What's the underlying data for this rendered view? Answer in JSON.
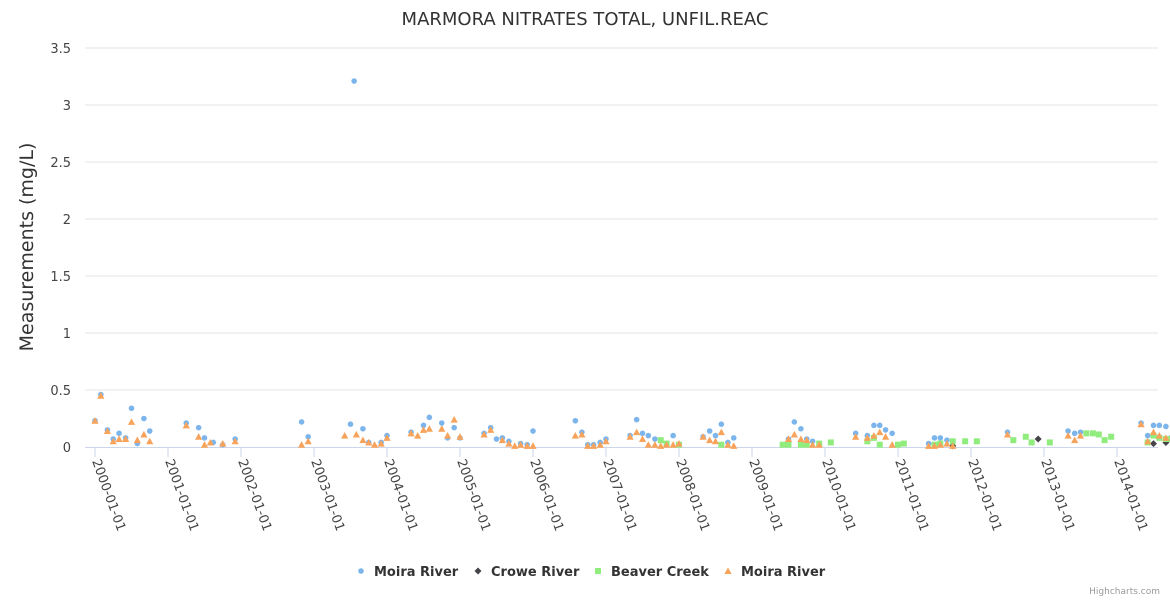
{
  "chart_data": {
    "type": "scatter",
    "title": "MARMORA NITRATES TOTAL, UNFIL.REAC",
    "ylabel": "Measurements (mg/L)",
    "xlabel": "",
    "ylim": [
      0,
      3.5
    ],
    "yticks": [
      0,
      0.5,
      1,
      1.5,
      2,
      2.5,
      3,
      3.5
    ],
    "ytick_labels": [
      "0",
      "0.5",
      "1",
      "1.5",
      "2",
      "2.5",
      "3",
      "3.5"
    ],
    "xlim": [
      1999.95,
      2014.6
    ],
    "xticks": [
      2000,
      2001,
      2002,
      2003,
      2004,
      2005,
      2006,
      2007,
      2008,
      2009,
      2010,
      2011,
      2012,
      2013,
      2014
    ],
    "xtick_labels": [
      "2000-01-01",
      "2001-01-01",
      "2002-01-01",
      "2003-01-01",
      "2004-01-01",
      "2005-01-01",
      "2006-01-01",
      "2007-01-01",
      "2008-01-01",
      "2009-01-01",
      "2010-01-01",
      "2011-01-01",
      "2012-01-01",
      "2013-01-01",
      "2014-01-01"
    ],
    "grid": true,
    "legend_position": "bottom-center",
    "series": [
      {
        "name": "Moira River",
        "marker": "circle",
        "color": "#7cb5ec",
        "points": [
          [
            2000.0,
            0.23
          ],
          [
            2000.08,
            0.46
          ],
          [
            2000.17,
            0.15
          ],
          [
            2000.25,
            0.07
          ],
          [
            2000.33,
            0.12
          ],
          [
            2000.42,
            0.08
          ],
          [
            2000.5,
            0.34
          ],
          [
            2000.58,
            0.03
          ],
          [
            2000.67,
            0.25
          ],
          [
            2000.75,
            0.14
          ],
          [
            2001.25,
            0.21
          ],
          [
            2001.42,
            0.17
          ],
          [
            2001.5,
            0.08
          ],
          [
            2001.62,
            0.04
          ],
          [
            2001.75,
            0.02
          ],
          [
            2001.92,
            0.07
          ],
          [
            2002.83,
            0.22
          ],
          [
            2002.92,
            0.09
          ],
          [
            2003.5,
            0.2
          ],
          [
            2003.55,
            3.21
          ],
          [
            2003.67,
            0.16
          ],
          [
            2003.75,
            0.04
          ],
          [
            2003.92,
            0.04
          ],
          [
            2004.0,
            0.1
          ],
          [
            2004.33,
            0.13
          ],
          [
            2004.5,
            0.19
          ],
          [
            2004.58,
            0.26
          ],
          [
            2004.75,
            0.21
          ],
          [
            2004.83,
            0.08
          ],
          [
            2004.92,
            0.17
          ],
          [
            2005.0,
            0.08
          ],
          [
            2005.33,
            0.12
          ],
          [
            2005.42,
            0.17
          ],
          [
            2005.5,
            0.07
          ],
          [
            2005.58,
            0.08
          ],
          [
            2005.67,
            0.05
          ],
          [
            2005.83,
            0.03
          ],
          [
            2005.92,
            0.02
          ],
          [
            2006.0,
            0.14
          ],
          [
            2006.58,
            0.23
          ],
          [
            2006.67,
            0.13
          ],
          [
            2006.75,
            0.02
          ],
          [
            2006.83,
            0.02
          ],
          [
            2006.92,
            0.04
          ],
          [
            2007.0,
            0.07
          ],
          [
            2007.33,
            0.1
          ],
          [
            2007.42,
            0.24
          ],
          [
            2007.5,
            0.12
          ],
          [
            2007.58,
            0.1
          ],
          [
            2007.67,
            0.07
          ],
          [
            2007.83,
            0.03
          ],
          [
            2007.92,
            0.1
          ],
          [
            2008.33,
            0.09
          ],
          [
            2008.42,
            0.14
          ],
          [
            2008.5,
            0.1
          ],
          [
            2008.58,
            0.2
          ],
          [
            2008.67,
            0.04
          ],
          [
            2008.75,
            0.08
          ],
          [
            2009.5,
            0.07
          ],
          [
            2009.58,
            0.22
          ],
          [
            2009.67,
            0.16
          ],
          [
            2009.75,
            0.07
          ],
          [
            2009.83,
            0.05
          ],
          [
            2010.42,
            0.12
          ],
          [
            2010.58,
            0.1
          ],
          [
            2010.67,
            0.19
          ],
          [
            2010.75,
            0.19
          ],
          [
            2010.83,
            0.15
          ],
          [
            2010.92,
            0.12
          ],
          [
            2011.42,
            0.03
          ],
          [
            2011.5,
            0.08
          ],
          [
            2011.58,
            0.08
          ],
          [
            2011.67,
            0.06
          ],
          [
            2012.5,
            0.13
          ],
          [
            2013.33,
            0.14
          ],
          [
            2013.42,
            0.12
          ],
          [
            2013.5,
            0.13
          ],
          [
            2014.33,
            0.21
          ],
          [
            2014.42,
            0.1
          ],
          [
            2014.5,
            0.19
          ],
          [
            2014.58,
            0.19
          ],
          [
            2014.67,
            0.18
          ],
          [
            2014.75,
            0.09
          ]
        ]
      },
      {
        "name": "Crowe River",
        "marker": "diamond",
        "color": "#434348",
        "points": [
          [
            2011.75,
            0.01
          ],
          [
            2012.92,
            0.07
          ],
          [
            2014.5,
            0.03
          ],
          [
            2014.67,
            0.04
          ]
        ]
      },
      {
        "name": "Beaver Creek",
        "marker": "square",
        "color": "#90ed7d",
        "points": [
          [
            2007.75,
            0.06
          ],
          [
            2007.83,
            0.03
          ],
          [
            2008.0,
            0.02
          ],
          [
            2008.58,
            0.02
          ],
          [
            2009.42,
            0.02
          ],
          [
            2009.5,
            0.02
          ],
          [
            2009.67,
            0.02
          ],
          [
            2009.75,
            0.02
          ],
          [
            2009.92,
            0.03
          ],
          [
            2010.08,
            0.04
          ],
          [
            2010.58,
            0.05
          ],
          [
            2010.67,
            0.08
          ],
          [
            2010.75,
            0.02
          ],
          [
            2011.0,
            0.02
          ],
          [
            2011.08,
            0.03
          ],
          [
            2011.5,
            0.02
          ],
          [
            2011.58,
            0.03
          ],
          [
            2011.75,
            0.05
          ],
          [
            2011.92,
            0.05
          ],
          [
            2012.08,
            0.05
          ],
          [
            2012.58,
            0.06
          ],
          [
            2012.75,
            0.09
          ],
          [
            2012.83,
            0.04
          ],
          [
            2013.08,
            0.04
          ],
          [
            2013.58,
            0.12
          ],
          [
            2013.67,
            0.12
          ],
          [
            2013.75,
            0.11
          ],
          [
            2013.83,
            0.06
          ],
          [
            2013.92,
            0.09
          ],
          [
            2014.42,
            0.04
          ],
          [
            2014.5,
            0.1
          ],
          [
            2014.58,
            0.08
          ],
          [
            2014.67,
            0.07
          ],
          [
            2014.75,
            0.07
          ],
          [
            2014.83,
            0.04
          ]
        ]
      },
      {
        "name": "Moira River",
        "marker": "triangle",
        "color": "#f7a35c",
        "points": [
          [
            2000.0,
            0.23
          ],
          [
            2000.08,
            0.45
          ],
          [
            2000.17,
            0.14
          ],
          [
            2000.25,
            0.05
          ],
          [
            2000.33,
            0.07
          ],
          [
            2000.42,
            0.07
          ],
          [
            2000.5,
            0.22
          ],
          [
            2000.58,
            0.06
          ],
          [
            2000.67,
            0.11
          ],
          [
            2000.75,
            0.05
          ],
          [
            2001.25,
            0.19
          ],
          [
            2001.42,
            0.09
          ],
          [
            2001.5,
            0.02
          ],
          [
            2001.58,
            0.04
          ],
          [
            2001.75,
            0.03
          ],
          [
            2001.92,
            0.05
          ],
          [
            2002.83,
            0.02
          ],
          [
            2002.92,
            0.05
          ],
          [
            2003.42,
            0.1
          ],
          [
            2003.58,
            0.11
          ],
          [
            2003.67,
            0.06
          ],
          [
            2003.75,
            0.04
          ],
          [
            2003.83,
            0.02
          ],
          [
            2003.92,
            0.03
          ],
          [
            2004.0,
            0.08
          ],
          [
            2004.33,
            0.12
          ],
          [
            2004.42,
            0.1
          ],
          [
            2004.5,
            0.15
          ],
          [
            2004.58,
            0.16
          ],
          [
            2004.75,
            0.16
          ],
          [
            2004.83,
            0.1
          ],
          [
            2004.92,
            0.24
          ],
          [
            2005.0,
            0.09
          ],
          [
            2005.33,
            0.11
          ],
          [
            2005.42,
            0.15
          ],
          [
            2005.58,
            0.06
          ],
          [
            2005.67,
            0.03
          ],
          [
            2005.75,
            0.01
          ],
          [
            2005.83,
            0.02
          ],
          [
            2005.92,
            0.01
          ],
          [
            2006.0,
            0.01
          ],
          [
            2006.58,
            0.1
          ],
          [
            2006.67,
            0.11
          ],
          [
            2006.75,
            0.01
          ],
          [
            2006.83,
            0.01
          ],
          [
            2006.92,
            0.02
          ],
          [
            2007.0,
            0.05
          ],
          [
            2007.33,
            0.09
          ],
          [
            2007.42,
            0.13
          ],
          [
            2007.5,
            0.07
          ],
          [
            2007.58,
            0.02
          ],
          [
            2007.67,
            0.02
          ],
          [
            2007.75,
            0.01
          ],
          [
            2007.83,
            0.02
          ],
          [
            2007.92,
            0.02
          ],
          [
            2008.0,
            0.03
          ],
          [
            2008.33,
            0.09
          ],
          [
            2008.42,
            0.06
          ],
          [
            2008.5,
            0.05
          ],
          [
            2008.58,
            0.13
          ],
          [
            2008.67,
            0.02
          ],
          [
            2008.75,
            0.01
          ],
          [
            2009.5,
            0.07
          ],
          [
            2009.58,
            0.11
          ],
          [
            2009.67,
            0.07
          ],
          [
            2009.75,
            0.06
          ],
          [
            2009.83,
            0.02
          ],
          [
            2009.92,
            0.02
          ],
          [
            2010.42,
            0.09
          ],
          [
            2010.58,
            0.08
          ],
          [
            2010.67,
            0.1
          ],
          [
            2010.75,
            0.13
          ],
          [
            2010.83,
            0.09
          ],
          [
            2010.92,
            0.02
          ],
          [
            2011.42,
            0.01
          ],
          [
            2011.5,
            0.01
          ],
          [
            2011.58,
            0.02
          ],
          [
            2011.67,
            0.03
          ],
          [
            2011.75,
            0.01
          ],
          [
            2012.5,
            0.11
          ],
          [
            2013.33,
            0.1
          ],
          [
            2013.42,
            0.06
          ],
          [
            2013.5,
            0.1
          ],
          [
            2014.33,
            0.2
          ],
          [
            2014.42,
            0.05
          ],
          [
            2014.5,
            0.13
          ],
          [
            2014.58,
            0.1
          ],
          [
            2014.67,
            0.08
          ],
          [
            2014.83,
            0.03
          ]
        ]
      }
    ]
  },
  "credits": "Highcharts.com"
}
